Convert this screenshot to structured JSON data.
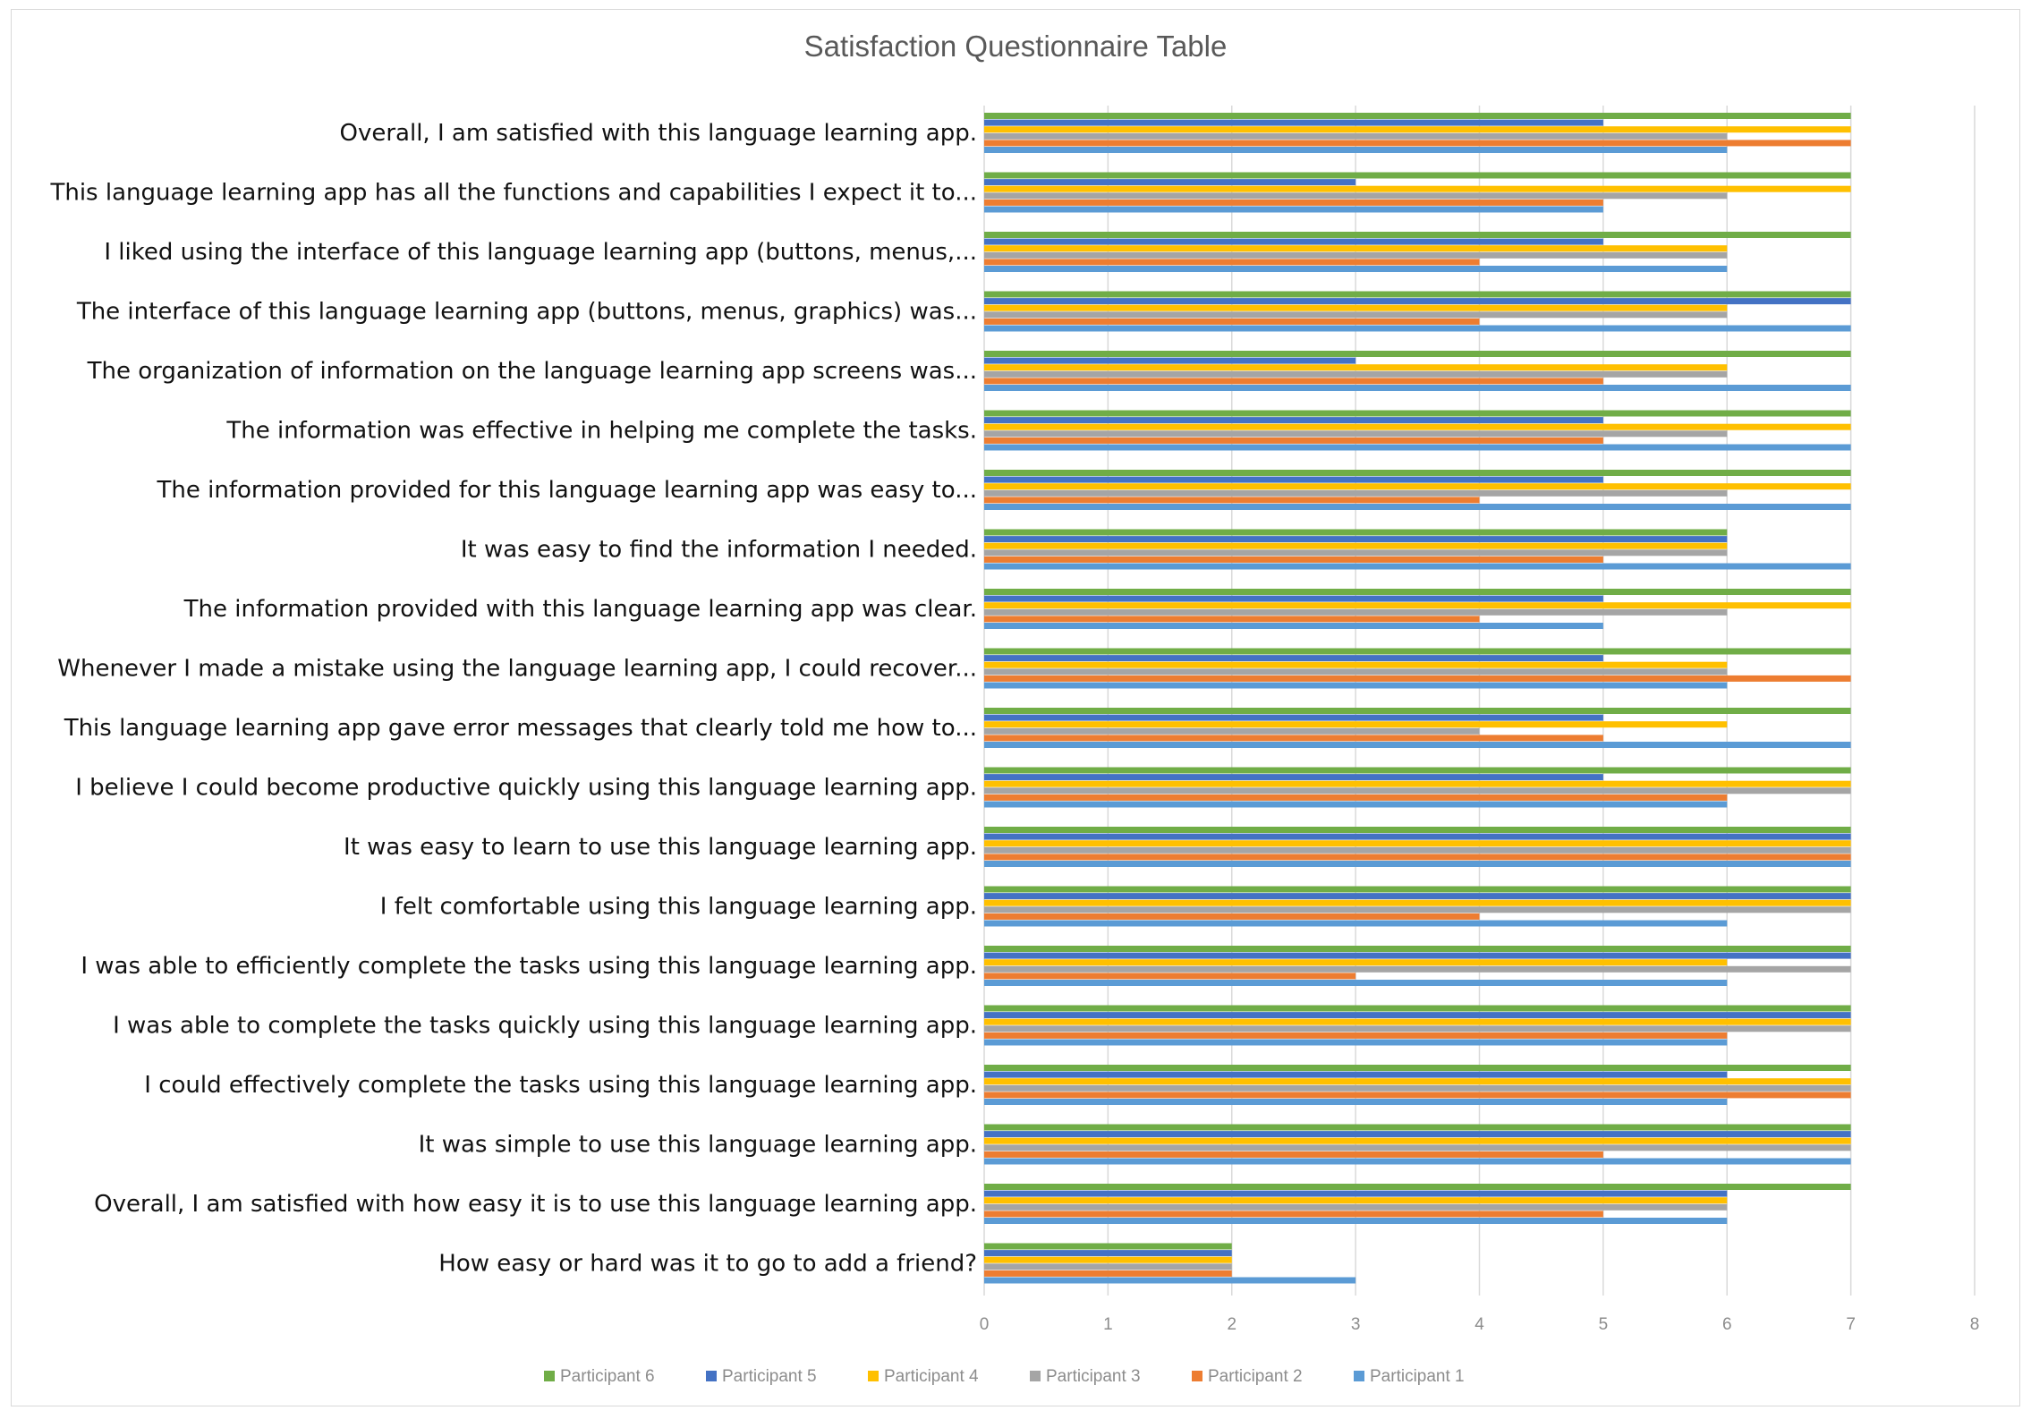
{
  "chart_data": {
    "type": "bar",
    "orientation": "horizontal",
    "title": "Satisfaction Questionnaire Table",
    "xlabel": "",
    "ylabel": "",
    "xlim": [
      0,
      8
    ],
    "xticks": [
      "0",
      "1",
      "2",
      "3",
      "4",
      "5",
      "6",
      "7",
      "8"
    ],
    "grid": true,
    "legend_position": "bottom",
    "categories": [
      "Overall, I am satisfied with this language learning app.",
      "This language learning app has all the functions and capabilities I expect it to...",
      "I liked using the interface of this language learning app (buttons, menus,...",
      "The interface of this language learning app (buttons, menus, graphics) was...",
      "The organization of information on the language learning app screens was...",
      "The information was effective in helping me complete the tasks.",
      "The information provided for this language learning app was easy to...",
      "It was easy to find the information I needed.",
      "The information provided with this language learning app was clear.",
      "Whenever I made a mistake using the language learning app, I could recover...",
      "This language learning app gave error messages that clearly told me how to...",
      "I believe I could become productive quickly using this language learning app.",
      "It was easy to learn to use this language learning app.",
      "I felt comfortable using this language learning app.",
      "I was able to efficiently complete the tasks using this language learning app.",
      "I was able to complete the tasks quickly using this language learning app.",
      "I could effectively complete the tasks using this language learning app.",
      "It was simple to use this language learning app.",
      "Overall, I am satisfied with how easy it is to use this language learning app.",
      "How easy or hard was it to go to add a friend?"
    ],
    "series": [
      {
        "name": "Participant 6",
        "color": "#70ad47",
        "values": [
          7,
          7,
          7,
          7,
          7,
          7,
          7,
          6,
          7,
          7,
          7,
          7,
          7,
          7,
          7,
          7,
          7,
          7,
          7,
          2
        ]
      },
      {
        "name": "Participant 5",
        "color": "#4472c4",
        "values": [
          5,
          3,
          5,
          7,
          3,
          5,
          5,
          6,
          5,
          5,
          5,
          5,
          7,
          7,
          7,
          7,
          6,
          7,
          6,
          2
        ]
      },
      {
        "name": "Participant 4",
        "color": "#ffc000",
        "values": [
          7,
          7,
          6,
          6,
          6,
          7,
          7,
          6,
          7,
          6,
          6,
          7,
          7,
          7,
          6,
          7,
          7,
          7,
          6,
          2
        ]
      },
      {
        "name": "Participant 3",
        "color": "#a5a5a5",
        "values": [
          6,
          6,
          6,
          6,
          6,
          6,
          6,
          6,
          6,
          6,
          4,
          7,
          7,
          7,
          7,
          7,
          7,
          7,
          6,
          2
        ]
      },
      {
        "name": "Participant 2",
        "color": "#ed7d31",
        "values": [
          7,
          5,
          4,
          4,
          5,
          5,
          4,
          5,
          4,
          7,
          5,
          6,
          7,
          4,
          3,
          6,
          7,
          5,
          5,
          2
        ]
      },
      {
        "name": "Participant 1",
        "color": "#5b9bd5",
        "values": [
          6,
          5,
          6,
          7,
          7,
          7,
          7,
          7,
          5,
          6,
          7,
          6,
          7,
          6,
          6,
          6,
          6,
          7,
          6,
          3
        ]
      }
    ]
  }
}
